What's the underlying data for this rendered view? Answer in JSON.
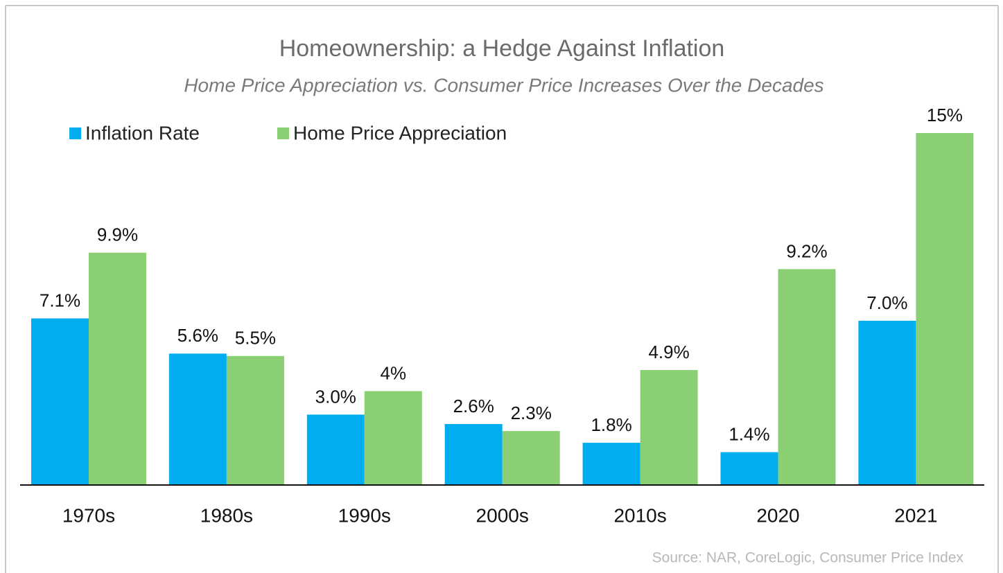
{
  "chart_data": {
    "type": "bar",
    "title": "Homeownership: a Hedge Against Inflation",
    "subtitle": "Home Price Appreciation vs. Consumer Price Increases Over the Decades",
    "source": "Source: NAR, CoreLogic, Consumer Price Index",
    "categories": [
      "1970s",
      "1980s",
      "1990s",
      "2000s",
      "2010s",
      "2020",
      "2021"
    ],
    "series": [
      {
        "name": "Inflation Rate",
        "color": "#00aeef",
        "values": [
          7.1,
          5.6,
          3.0,
          2.6,
          1.8,
          1.4,
          7.0
        ],
        "value_labels": [
          "7.1%",
          "5.6%",
          "3.0%",
          "2.6%",
          "1.8%",
          "1.4%",
          "7.0%"
        ]
      },
      {
        "name": "Home Price Appreciation",
        "color": "#8bcf74",
        "values": [
          9.9,
          5.5,
          4,
          2.3,
          4.9,
          9.2,
          15
        ],
        "value_labels": [
          "9.9%",
          "5.5%",
          "4%",
          "2.3%",
          "4.9%",
          "9.2%",
          "15%"
        ]
      }
    ]
  }
}
